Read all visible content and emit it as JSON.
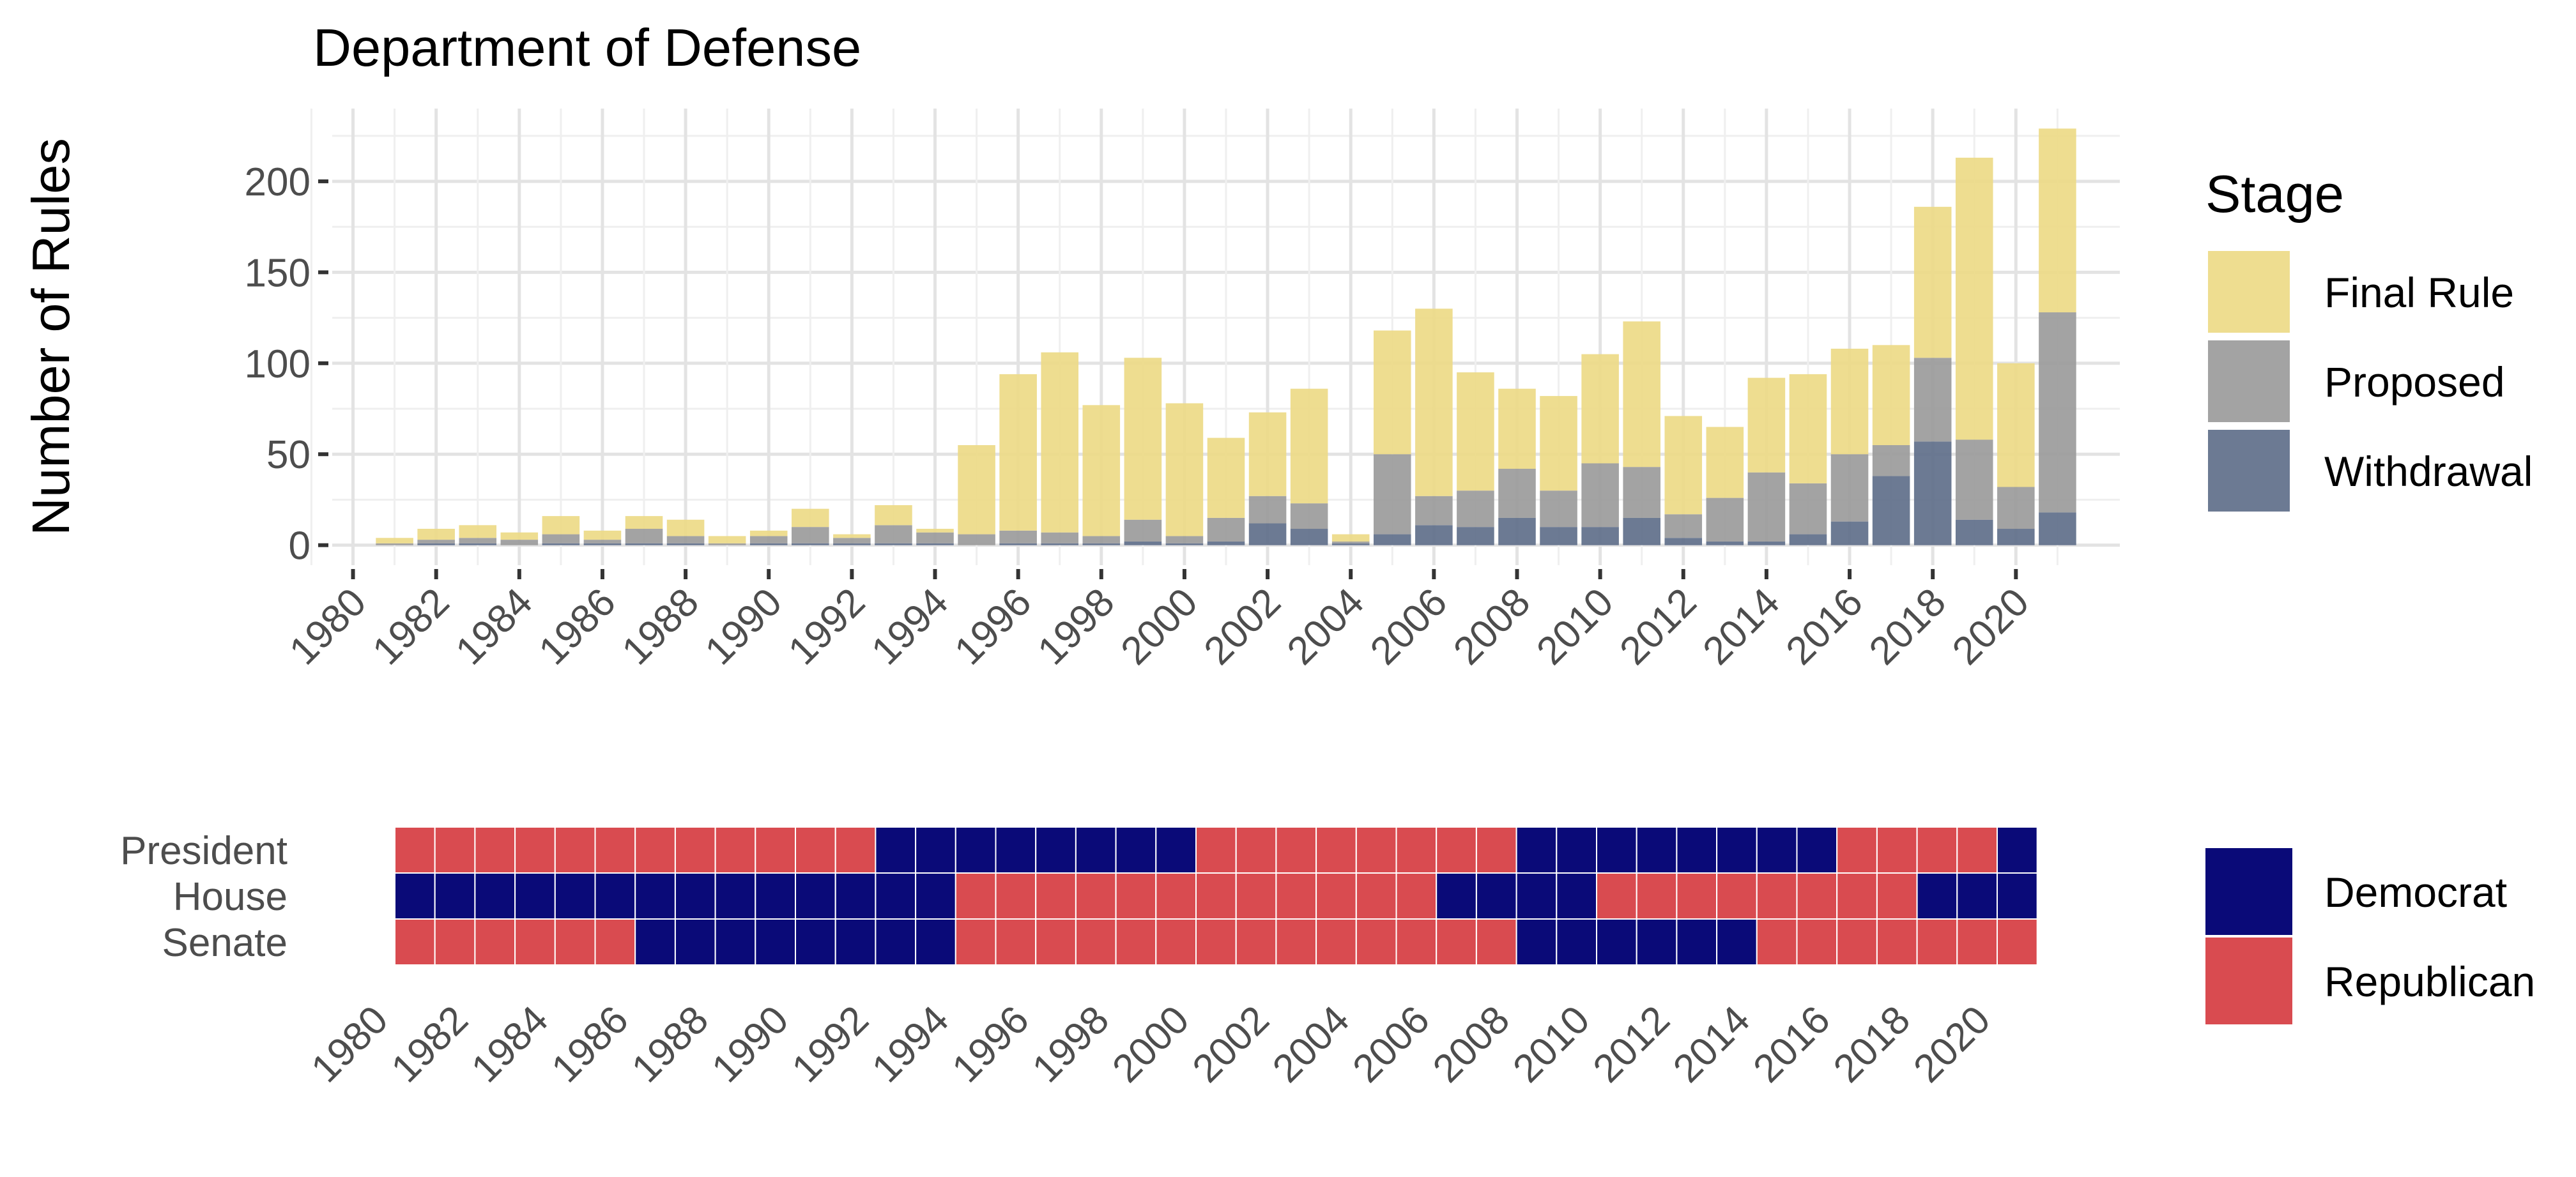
{
  "chart_data": [
    {
      "type": "bar",
      "stacked": true,
      "title": "Department of Defense",
      "xlabel": "",
      "ylabel": "Number of Rules",
      "x": [
        1981,
        1982,
        1983,
        1984,
        1985,
        1986,
        1987,
        1988,
        1989,
        1990,
        1991,
        1992,
        1993,
        1994,
        1995,
        1996,
        1997,
        1998,
        1999,
        2000,
        2001,
        2002,
        2003,
        2004,
        2005,
        2006,
        2007,
        2008,
        2009,
        2010,
        2011,
        2012,
        2013,
        2014,
        2015,
        2016,
        2017,
        2018,
        2019,
        2020,
        2021
      ],
      "xticks": [
        1980,
        1982,
        1984,
        1986,
        1988,
        1990,
        1992,
        1994,
        1996,
        1998,
        2000,
        2002,
        2004,
        2006,
        2008,
        2010,
        2012,
        2014,
        2016,
        2018,
        2020
      ],
      "xlim": [
        1979.5,
        2022.5
      ],
      "yticks": [
        0,
        50,
        100,
        150,
        200
      ],
      "ylim": [
        -11,
        240
      ],
      "grid": true,
      "legend": {
        "title": "Stage",
        "position": "right"
      },
      "series": [
        {
          "name": "Withdrawal",
          "color": "#5c6b87",
          "values": [
            0,
            1,
            1,
            0,
            1,
            1,
            1,
            1,
            0,
            1,
            1,
            1,
            1,
            1,
            0,
            1,
            1,
            1,
            2,
            1,
            2,
            12,
            9,
            1,
            6,
            11,
            10,
            15,
            10,
            10,
            15,
            4,
            2,
            2,
            6,
            13,
            38,
            57,
            14,
            9,
            18
          ]
        },
        {
          "name": "Proposed",
          "color": "#999999",
          "values": [
            1,
            2,
            3,
            3,
            5,
            2,
            8,
            4,
            1,
            4,
            9,
            3,
            10,
            6,
            6,
            7,
            6,
            4,
            12,
            4,
            13,
            15,
            14,
            1,
            44,
            16,
            20,
            27,
            20,
            35,
            28,
            13,
            24,
            38,
            28,
            37,
            17,
            46,
            44,
            23,
            110
          ]
        },
        {
          "name": "Final Rule",
          "color": "#ecd984",
          "values": [
            3,
            6,
            7,
            4,
            10,
            5,
            7,
            9,
            4,
            3,
            10,
            2,
            11,
            2,
            49,
            86,
            99,
            72,
            89,
            73,
            44,
            46,
            63,
            4,
            68,
            103,
            65,
            44,
            52,
            60,
            80,
            54,
            39,
            52,
            60,
            58,
            55,
            83,
            155,
            68,
            101
          ]
        }
      ]
    },
    {
      "type": "heatmap",
      "rows": [
        "President",
        "House",
        "Senate"
      ],
      "x": [
        1981,
        1982,
        1983,
        1984,
        1985,
        1986,
        1987,
        1988,
        1989,
        1990,
        1991,
        1992,
        1993,
        1994,
        1995,
        1996,
        1997,
        1998,
        1999,
        2000,
        2001,
        2002,
        2003,
        2004,
        2005,
        2006,
        2007,
        2008,
        2009,
        2010,
        2011,
        2012,
        2013,
        2014,
        2015,
        2016,
        2017,
        2018,
        2019,
        2020,
        2021
      ],
      "xticks": [
        1980,
        1982,
        1984,
        1986,
        1988,
        1990,
        1992,
        1994,
        1996,
        1998,
        2000,
        2002,
        2004,
        2006,
        2008,
        2010,
        2012,
        2014,
        2016,
        2018,
        2020
      ],
      "legend": {
        "position": "right"
      },
      "categories": [
        {
          "key": "D",
          "name": "Democrat",
          "color": "#0a0a78"
        },
        {
          "key": "R",
          "name": "Republican",
          "color": "#d94b50"
        }
      ],
      "values": {
        "President": [
          "R",
          "R",
          "R",
          "R",
          "R",
          "R",
          "R",
          "R",
          "R",
          "R",
          "R",
          "R",
          "D",
          "D",
          "D",
          "D",
          "D",
          "D",
          "D",
          "D",
          "R",
          "R",
          "R",
          "R",
          "R",
          "R",
          "R",
          "R",
          "D",
          "D",
          "D",
          "D",
          "D",
          "D",
          "D",
          "D",
          "R",
          "R",
          "R",
          "R",
          "D"
        ],
        "House": [
          "D",
          "D",
          "D",
          "D",
          "D",
          "D",
          "D",
          "D",
          "D",
          "D",
          "D",
          "D",
          "D",
          "D",
          "R",
          "R",
          "R",
          "R",
          "R",
          "R",
          "R",
          "R",
          "R",
          "R",
          "R",
          "R",
          "D",
          "D",
          "D",
          "D",
          "R",
          "R",
          "R",
          "R",
          "R",
          "R",
          "R",
          "R",
          "D",
          "D",
          "D"
        ],
        "Senate": [
          "R",
          "R",
          "R",
          "R",
          "R",
          "R",
          "D",
          "D",
          "D",
          "D",
          "D",
          "D",
          "D",
          "D",
          "R",
          "R",
          "R",
          "R",
          "R",
          "R",
          "R",
          "R",
          "R",
          "R",
          "R",
          "R",
          "R",
          "R",
          "D",
          "D",
          "D",
          "D",
          "D",
          "D",
          "R",
          "R",
          "R",
          "R",
          "R",
          "R",
          "R"
        ]
      }
    }
  ]
}
